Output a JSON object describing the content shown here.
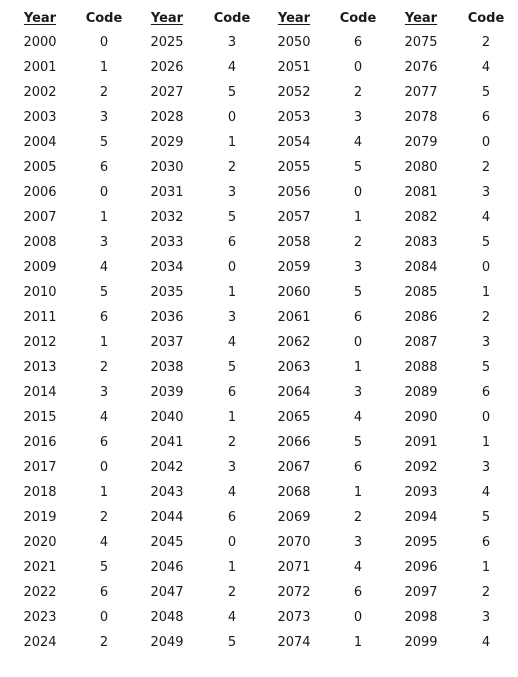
{
  "table": {
    "headers": [
      "Year",
      "Code",
      "Year",
      "Code",
      "Year",
      "Code",
      "Year",
      "Code"
    ],
    "groups": [
      {
        "years": [
          "2000",
          "2001",
          "2002",
          "2003",
          "2004",
          "2005",
          "2006",
          "2007",
          "2008",
          "2009",
          "2010",
          "2011",
          "2012",
          "2013",
          "2014",
          "2015",
          "2016",
          "2017",
          "2018",
          "2019",
          "2020",
          "2021",
          "2022",
          "2023",
          "2024"
        ],
        "codes": [
          "0",
          "1",
          "2",
          "3",
          "5",
          "6",
          "0",
          "1",
          "3",
          "4",
          "5",
          "6",
          "1",
          "2",
          "3",
          "4",
          "6",
          "0",
          "1",
          "2",
          "4",
          "5",
          "6",
          "0",
          "2"
        ]
      },
      {
        "years": [
          "2025",
          "2026",
          "2027",
          "2028",
          "2029",
          "2030",
          "2031",
          "2032",
          "2033",
          "2034",
          "2035",
          "2036",
          "2037",
          "2038",
          "2039",
          "2040",
          "2041",
          "2042",
          "2043",
          "2044",
          "2045",
          "2046",
          "2047",
          "2048",
          "2049"
        ],
        "codes": [
          "3",
          "4",
          "5",
          "0",
          "1",
          "2",
          "3",
          "5",
          "6",
          "0",
          "1",
          "3",
          "4",
          "5",
          "6",
          "1",
          "2",
          "3",
          "4",
          "6",
          "0",
          "1",
          "2",
          "4",
          "5"
        ]
      },
      {
        "years": [
          "2050",
          "2051",
          "2052",
          "2053",
          "2054",
          "2055",
          "2056",
          "2057",
          "2058",
          "2059",
          "2060",
          "2061",
          "2062",
          "2063",
          "2064",
          "2065",
          "2066",
          "2067",
          "2068",
          "2069",
          "2070",
          "2071",
          "2072",
          "2073",
          "2074"
        ],
        "codes": [
          "6",
          "0",
          "2",
          "3",
          "4",
          "5",
          "0",
          "1",
          "2",
          "3",
          "5",
          "6",
          "0",
          "1",
          "3",
          "4",
          "5",
          "6",
          "1",
          "2",
          "3",
          "4",
          "6",
          "0",
          "1"
        ]
      },
      {
        "years": [
          "2075",
          "2076",
          "2077",
          "2078",
          "2079",
          "2080",
          "2081",
          "2082",
          "2083",
          "2084",
          "2085",
          "2086",
          "2087",
          "2088",
          "2089",
          "2090",
          "2091",
          "2092",
          "2093",
          "2094",
          "2095",
          "2096",
          "2097",
          "2098",
          "2099"
        ],
        "codes": [
          "2",
          "4",
          "5",
          "6",
          "0",
          "2",
          "3",
          "4",
          "5",
          "0",
          "1",
          "2",
          "3",
          "5",
          "6",
          "0",
          "1",
          "3",
          "4",
          "5",
          "6",
          "1",
          "2",
          "3",
          "4"
        ]
      }
    ]
  }
}
